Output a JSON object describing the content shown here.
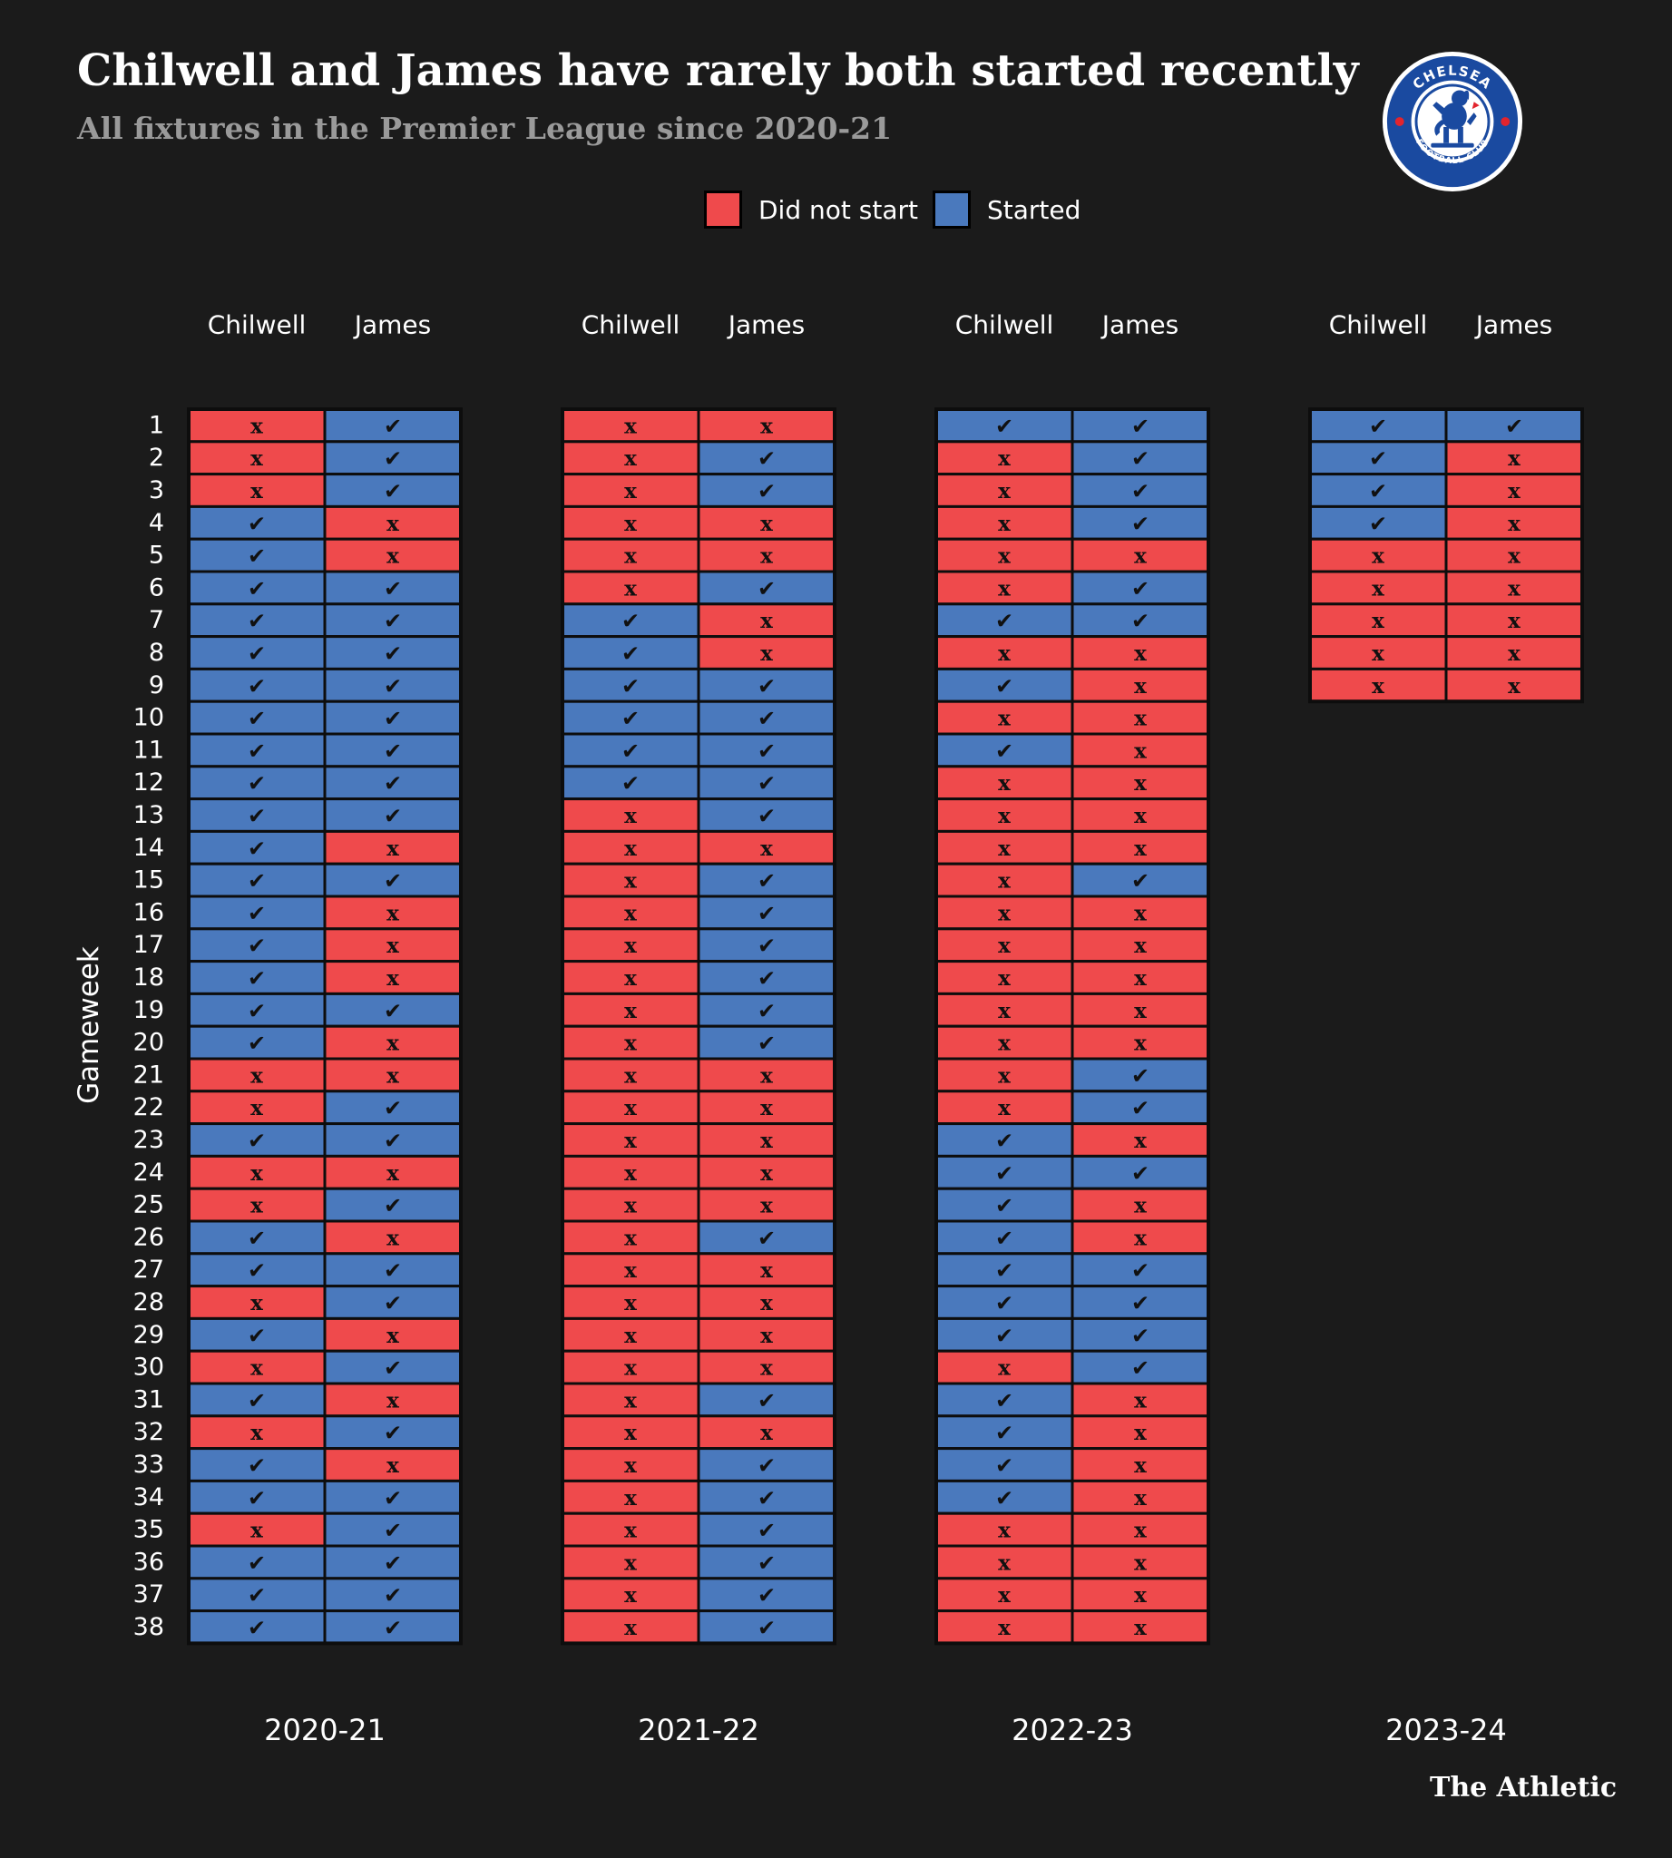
{
  "title": "Chilwell and James have rarely both started recently",
  "subtitle": "All fixtures in the Premier League since 2020-21",
  "legend": [
    {
      "label": "Did not start",
      "color": "#ef4a4c"
    },
    {
      "label": "Started",
      "color": "#4a79bd"
    }
  ],
  "logo": {
    "top_text": "CHELSEA",
    "bottom_text": "FOOTBALL CLUB",
    "colors": {
      "blue": "#1a4aa0",
      "red": "#e2242d",
      "white": "#ffffff"
    }
  },
  "brand": "The Athletic",
  "colors": {
    "started": "#4a79bd",
    "not_started": "#ef4a4c",
    "border": "#0d0d0d"
  },
  "chart_data": {
    "type": "table",
    "title": "Chilwell and James have rarely both started recently",
    "subtitle": "All fixtures in the Premier League since 2020-21",
    "ylabel": "Gameweek",
    "gameweeks": [
      "1",
      "2",
      "3",
      "4",
      "5",
      "6",
      "7",
      "8",
      "9",
      "10",
      "11",
      "12",
      "13",
      "14",
      "15",
      "16",
      "17",
      "18",
      "19",
      "20",
      "21",
      "22",
      "23",
      "24",
      "25",
      "26",
      "27",
      "28",
      "29",
      "30",
      "31",
      "32",
      "33",
      "34",
      "35",
      "36",
      "37",
      "38"
    ],
    "players": [
      "Chilwell",
      "James"
    ],
    "symbols": {
      "started": "✔",
      "not_started": "x"
    },
    "legend": {
      "0": "Did not start",
      "1": "Started"
    },
    "seasons": [
      {
        "season": "2020-21",
        "chilwell": [
          0,
          0,
          0,
          1,
          1,
          1,
          1,
          1,
          1,
          1,
          1,
          1,
          1,
          1,
          1,
          1,
          1,
          1,
          1,
          1,
          0,
          0,
          1,
          0,
          0,
          1,
          1,
          0,
          1,
          0,
          1,
          0,
          1,
          1,
          0,
          1,
          1,
          1
        ],
        "james": [
          1,
          1,
          1,
          0,
          0,
          1,
          1,
          1,
          1,
          1,
          1,
          1,
          1,
          0,
          1,
          0,
          0,
          0,
          1,
          0,
          0,
          1,
          1,
          0,
          1,
          0,
          1,
          1,
          0,
          1,
          0,
          1,
          0,
          1,
          1,
          1,
          1,
          1
        ]
      },
      {
        "season": "2021-22",
        "chilwell": [
          0,
          0,
          0,
          0,
          0,
          0,
          1,
          1,
          1,
          1,
          1,
          1,
          0,
          0,
          0,
          0,
          0,
          0,
          0,
          0,
          0,
          0,
          0,
          0,
          0,
          0,
          0,
          0,
          0,
          0,
          0,
          0,
          0,
          0,
          0,
          0,
          0,
          0
        ],
        "james": [
          0,
          1,
          1,
          0,
          0,
          1,
          0,
          0,
          1,
          1,
          1,
          1,
          1,
          0,
          1,
          1,
          1,
          1,
          1,
          1,
          0,
          0,
          0,
          0,
          0,
          1,
          0,
          0,
          0,
          0,
          1,
          0,
          1,
          1,
          1,
          1,
          1,
          1
        ]
      },
      {
        "season": "2022-23",
        "chilwell": [
          1,
          0,
          0,
          0,
          0,
          0,
          1,
          0,
          1,
          0,
          1,
          0,
          0,
          0,
          0,
          0,
          0,
          0,
          0,
          0,
          0,
          0,
          1,
          1,
          1,
          1,
          1,
          1,
          1,
          0,
          1,
          1,
          1,
          1,
          0,
          0,
          0,
          0
        ],
        "james": [
          1,
          1,
          1,
          1,
          0,
          1,
          1,
          0,
          0,
          0,
          0,
          0,
          0,
          0,
          1,
          0,
          0,
          0,
          0,
          0,
          1,
          1,
          0,
          1,
          0,
          0,
          1,
          1,
          1,
          1,
          0,
          0,
          0,
          0,
          0,
          0,
          0,
          0
        ]
      },
      {
        "season": "2023-24",
        "chilwell": [
          1,
          1,
          1,
          1,
          0,
          0,
          0,
          0,
          0
        ],
        "james": [
          1,
          0,
          0,
          0,
          0,
          0,
          0,
          0,
          0
        ]
      }
    ]
  }
}
